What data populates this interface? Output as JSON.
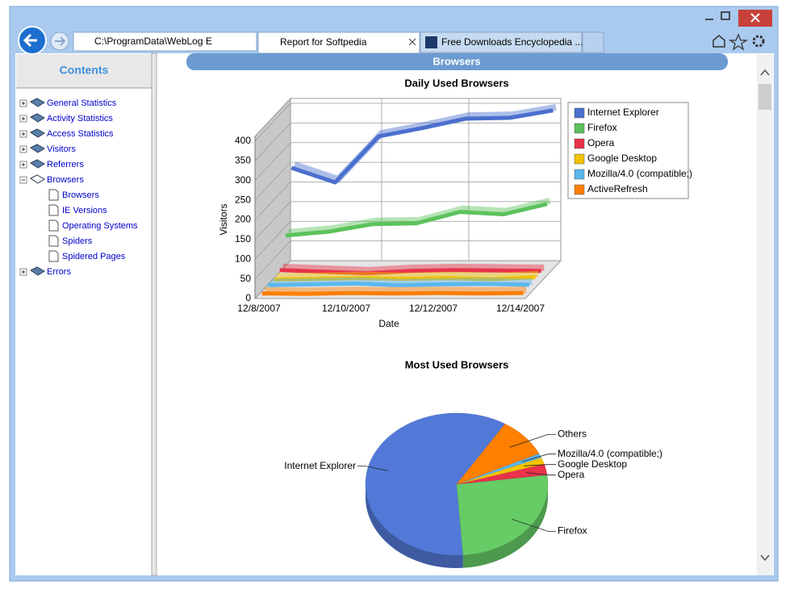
{
  "window": {
    "address": "C:\\ProgramData\\WebLog E",
    "tabs": [
      "Report for Softpedia",
      "Free Downloads Encyclopedia ..."
    ]
  },
  "sidebar": {
    "title": "Contents",
    "items": [
      {
        "label": "General Statistics"
      },
      {
        "label": "Activity Statistics"
      },
      {
        "label": "Access Statistics"
      },
      {
        "label": "Visitors"
      },
      {
        "label": "Referrers"
      },
      {
        "label": "Browsers",
        "children": [
          "Browsers",
          "IE Versions",
          "Operating Systems",
          "Spiders",
          "Spidered Pages"
        ]
      },
      {
        "label": "Errors"
      }
    ]
  },
  "header": "Browsers",
  "chart_data": [
    {
      "type": "line",
      "title": "Daily Used Browsers",
      "x_label": "Date",
      "y_label": "Visitors",
      "categories": [
        "12/8/2007",
        null,
        "12/10/2007",
        null,
        "12/12/2007",
        null,
        "12/14/2007"
      ],
      "series": [
        {
          "name": "Internet Explorer",
          "color": "#4a6fcf",
          "values": [
            244,
            207,
            324,
            345,
            369,
            371,
            390
          ]
        },
        {
          "name": "Firefox",
          "color": "#5cc25c",
          "values": [
            88,
            98,
            117,
            119,
            148,
            142,
            168
          ]
        },
        {
          "name": "Opera",
          "color": "#e8334a",
          "values": [
            16,
            12,
            8,
            14,
            16,
            15,
            14
          ]
        },
        {
          "name": "Google Desktop",
          "color": "#f2c200",
          "values": [
            8,
            10,
            12,
            10,
            12,
            9,
            14
          ]
        },
        {
          "name": "Mozilla/4.0 (compatible;)",
          "color": "#5bb8ee",
          "values": [
            10,
            12,
            14,
            10,
            12,
            13,
            11
          ]
        },
        {
          "name": "ActiveRefresh",
          "color": "#ff7f00",
          "values": [
            5,
            4,
            6,
            5,
            6,
            5,
            6
          ]
        }
      ],
      "ylim": [
        0,
        400
      ],
      "yticks": [
        0,
        50,
        100,
        150,
        200,
        250,
        300,
        350,
        400
      ],
      "grid": true,
      "legend": "right"
    },
    {
      "type": "pie",
      "title": "Most Used Browsers",
      "categories": [
        "Internet Explorer",
        "Firefox",
        "Opera",
        "Google Desktop",
        "Mozilla/4.0 (compatible;)",
        "Others"
      ],
      "values": [
        60,
        26,
        2.5,
        1.5,
        1,
        9
      ],
      "colors": [
        "#5279d8",
        "#66cc66",
        "#e8334a",
        "#f5c400",
        "#5bb8ee",
        "#ff7f00"
      ]
    }
  ]
}
